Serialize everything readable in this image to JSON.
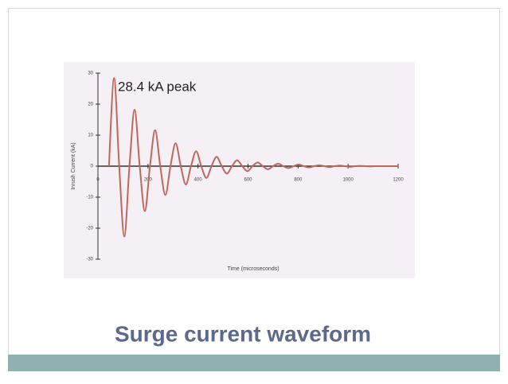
{
  "chart_data": {
    "type": "line",
    "title": "Surge current waveform",
    "annotation": "28.4 kA peak",
    "x_label": "Time (microseconds)",
    "y_label": "Inrush Current (kA)",
    "xlim": [
      0,
      1200
    ],
    "ylim": [
      -30,
      30
    ],
    "xticks": [
      0,
      200,
      400,
      600,
      800,
      1000,
      1200
    ],
    "yticks": [
      -30,
      -20,
      -10,
      0,
      10,
      20,
      30
    ],
    "series": [
      {
        "name": "Inrush current",
        "color": "#c0665a",
        "x": [
          44,
          64.5,
          85,
          105.5,
          126,
          146.5,
          167,
          187.5,
          208,
          228.5,
          249,
          269.5,
          290,
          310.5,
          331,
          351.5,
          372,
          392.5,
          413,
          433.5,
          454,
          474.5,
          495,
          515.5,
          536,
          556.5,
          577,
          597.5,
          618,
          638.5,
          659,
          679.5,
          700,
          720.5,
          741,
          761.5,
          782,
          802.5,
          823,
          843.5,
          864,
          884.5,
          905,
          925.5,
          946,
          966.5,
          987,
          1007.5,
          1028,
          1048.5,
          1069,
          1089.5,
          1110,
          1200
        ],
        "values": [
          0,
          28.4,
          0,
          -22.7,
          0,
          18.2,
          0,
          -14.5,
          0,
          11.6,
          0,
          -9.3,
          0,
          7.4,
          0,
          -5.9,
          0,
          4.8,
          0,
          -3.8,
          0,
          3.0,
          0,
          -2.4,
          0,
          1.9,
          0,
          -1.6,
          0,
          1.2,
          0,
          -1.0,
          0,
          0.8,
          0,
          -0.6,
          0,
          0.5,
          0,
          -0.4,
          0,
          0.3,
          0,
          -0.3,
          0,
          0.2,
          0,
          -0.2,
          0,
          0.1,
          0,
          -0.1,
          0,
          0
        ]
      }
    ]
  }
}
